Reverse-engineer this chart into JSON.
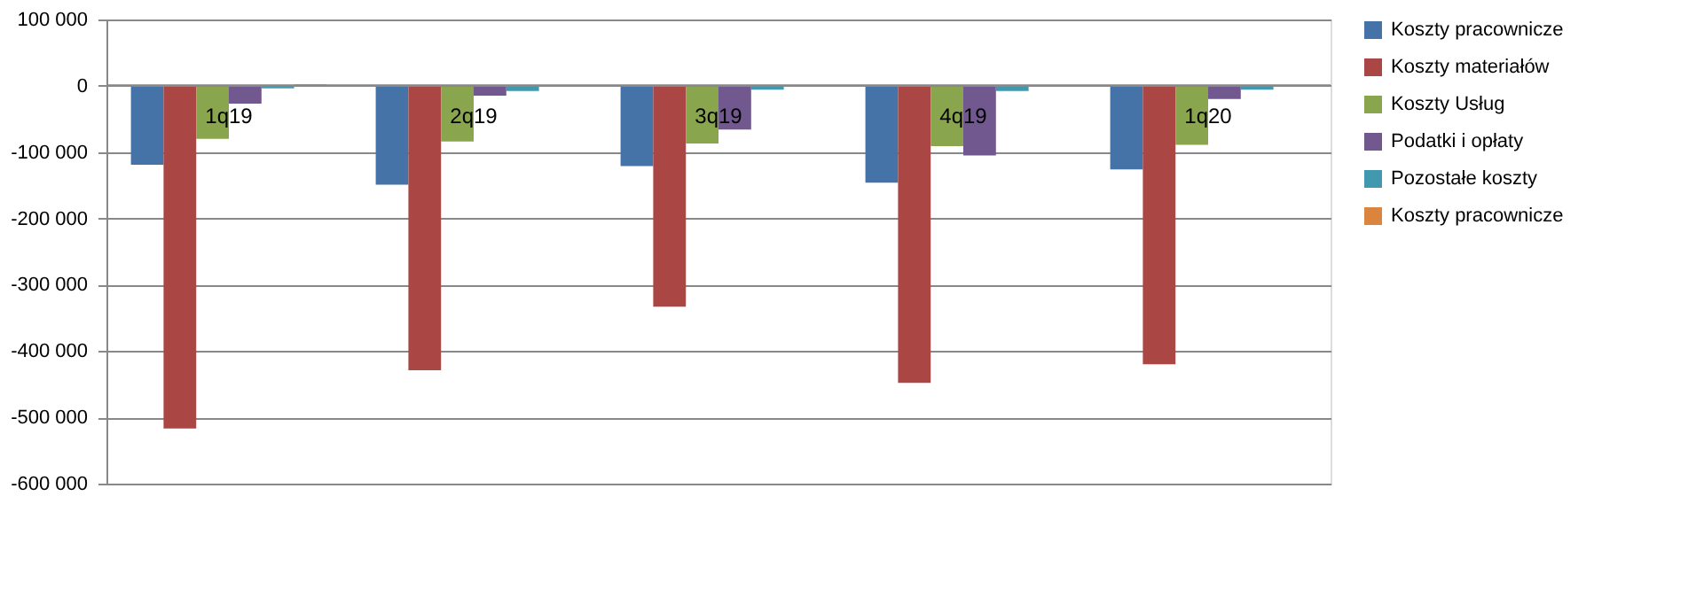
{
  "chart_data": {
    "type": "bar",
    "categories": [
      "1q19",
      "2q19",
      "3q19",
      "4q19",
      "1q20"
    ],
    "series": [
      {
        "name": "Koszty pracownicze",
        "color": "#4572a7",
        "values": [
          -119000,
          -149000,
          -121000,
          -146000,
          -126000
        ]
      },
      {
        "name": "Koszty materiałów",
        "color": "#aa4643",
        "values": [
          -517000,
          -429000,
          -333000,
          -448000,
          -420000
        ]
      },
      {
        "name": "Koszty Usług",
        "color": "#89a54e",
        "values": [
          -80000,
          -84000,
          -87000,
          -91000,
          -89000
        ]
      },
      {
        "name": "Podatki i opłaty",
        "color": "#71588f",
        "values": [
          -27000,
          -15000,
          -66000,
          -105000,
          -20000
        ]
      },
      {
        "name": "Pozostałe koszty",
        "color": "#4198af",
        "values": [
          -4000,
          -8000,
          -6000,
          -8000,
          -6000
        ]
      },
      {
        "name": "Koszty pracownicze",
        "color": "#db843d",
        "values": [
          2000,
          null,
          null,
          null,
          null
        ]
      }
    ],
    "ylim": [
      -600000,
      100000
    ],
    "yticks": [
      {
        "value": -600000,
        "label": "-600 000"
      },
      {
        "value": -500000,
        "label": "-500 000"
      },
      {
        "value": -400000,
        "label": "-400 000"
      },
      {
        "value": -300000,
        "label": "-300 000"
      },
      {
        "value": -200000,
        "label": "-200 000"
      },
      {
        "value": -100000,
        "label": "-100 000"
      },
      0,
      {
        "value": 100000,
        "label": "100 000"
      }
    ],
    "grid": "y",
    "legend": "right"
  }
}
